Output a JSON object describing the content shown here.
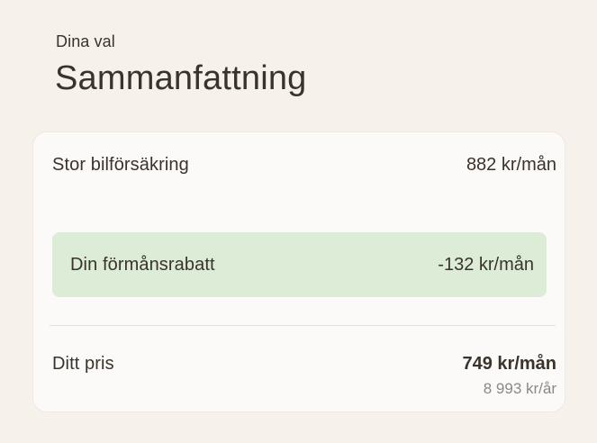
{
  "header": {
    "eyebrow": "Dina val",
    "title": "Sammanfattning"
  },
  "card": {
    "product": {
      "label": "Stor bilförsäkring",
      "price": "882 kr/mån"
    },
    "discount": {
      "label": "Din förmånsrabatt",
      "amount": "-132 kr/mån"
    },
    "total": {
      "label": "Ditt pris",
      "price_monthly": "749 kr/mån",
      "price_yearly": "8 993 kr/år"
    }
  },
  "colors": {
    "page_background": "#f7f1ec",
    "card_background": "#fcfaf8",
    "card_border": "#efe8e2",
    "discount_background": "#ddecd7",
    "text_primary": "#3a332c",
    "text_secondary": "#8c8882",
    "divider": "#e5e1dd"
  }
}
